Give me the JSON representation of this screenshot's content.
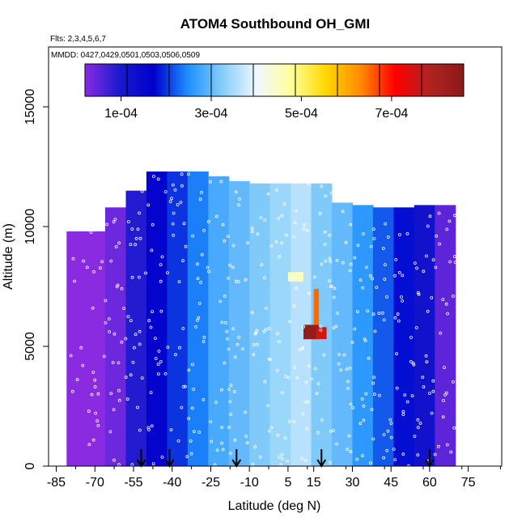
{
  "chart_data": {
    "type": "heatmap",
    "title": "ATOM4 Southbound OH_GMI",
    "flights_label": "Flts: 2,3,4,5,6,7",
    "mmdd_label": "MMDD: 0427,0429,0501,0503,0506,0509",
    "xlabel": "Latitude (deg N)",
    "ylabel": "Altitude (m)",
    "xlim": [
      -88,
      88
    ],
    "ylim": [
      0,
      17500
    ],
    "x_ticks": [
      -85,
      -70,
      -55,
      -40,
      -25,
      -10,
      5,
      15,
      30,
      45,
      60,
      75
    ],
    "x_tick_labels": [
      "-85",
      "-70",
      "-55",
      "-40",
      "-25",
      "-10",
      "5",
      "15",
      "30",
      "45",
      "60",
      "75"
    ],
    "y_ticks": [
      0,
      5000,
      10000,
      15000
    ],
    "y_tick_labels": [
      "0",
      "5000",
      "10000",
      "15000"
    ],
    "colorbar": {
      "min": 2e-05,
      "max": 0.00086,
      "ticks": [
        0.0001,
        0.0003,
        0.0005,
        0.0007
      ],
      "tick_labels": [
        "1e-04",
        "3e-04",
        "5e-04",
        "7e-04"
      ],
      "colors": [
        "#8a2be2",
        "#1a1acd",
        "#0000cd",
        "#1e90ff",
        "#87cefa",
        "#f0f8ff",
        "#ffff99",
        "#ffd700",
        "#ff8c00",
        "#ff0000",
        "#b22222",
        "#8b1a1a"
      ]
    },
    "latitude_bands": [
      {
        "lat_min": -81,
        "lat_max": -66,
        "alt_max": 9800,
        "value": 2e-05
      },
      {
        "lat_min": -66,
        "lat_max": -58,
        "alt_max": 10800,
        "value": 4e-05
      },
      {
        "lat_min": -58,
        "lat_max": -50,
        "alt_max": 11500,
        "value": 9e-05
      },
      {
        "lat_min": -50,
        "lat_max": -42,
        "alt_max": 12300,
        "value": 0.00016
      },
      {
        "lat_min": -42,
        "lat_max": -34,
        "alt_max": 12300,
        "value": 0.0002
      },
      {
        "lat_min": -34,
        "lat_max": -26,
        "alt_max": 12300,
        "value": 0.00024
      },
      {
        "lat_min": -26,
        "lat_max": -18,
        "alt_max": 12100,
        "value": 0.00028
      },
      {
        "lat_min": -18,
        "lat_max": -10,
        "alt_max": 11900,
        "value": 0.0003
      },
      {
        "lat_min": -10,
        "lat_max": -2,
        "alt_max": 11800,
        "value": 0.00032
      },
      {
        "lat_min": -2,
        "lat_max": 6,
        "alt_max": 11800,
        "value": 0.00034
      },
      {
        "lat_min": 6,
        "lat_max": 14,
        "alt_max": 11800,
        "value": 0.00036
      },
      {
        "lat_min": 14,
        "lat_max": 22,
        "alt_max": 11800,
        "value": 0.00032
      },
      {
        "lat_min": 22,
        "lat_max": 30,
        "alt_max": 11000,
        "value": 0.0003
      },
      {
        "lat_min": 30,
        "lat_max": 38,
        "alt_max": 10900,
        "value": 0.00026
      },
      {
        "lat_min": 38,
        "lat_max": 46,
        "alt_max": 10800,
        "value": 0.00022
      },
      {
        "lat_min": 46,
        "lat_max": 54,
        "alt_max": 10800,
        "value": 0.00018
      },
      {
        "lat_min": 54,
        "lat_max": 62,
        "alt_max": 10900,
        "value": 0.00012
      },
      {
        "lat_min": 62,
        "lat_max": 70,
        "alt_max": 10900,
        "value": 5e-05
      }
    ],
    "hotspots": [
      {
        "lat_min": 11,
        "lat_max": 17,
        "alt_min": 5300,
        "alt_max": 5900,
        "value": 0.00084
      },
      {
        "lat_min": 15,
        "lat_max": 17,
        "alt_min": 5900,
        "alt_max": 7400,
        "value": 0.00065
      },
      {
        "lat_min": 16,
        "lat_max": 20,
        "alt_min": 5300,
        "alt_max": 5800,
        "value": 0.00075
      },
      {
        "lat_min": 5,
        "lat_max": 11,
        "alt_min": 7700,
        "alt_max": 8100,
        "value": 0.00045
      }
    ],
    "arrows_latitude": [
      -52,
      -41,
      -15,
      18,
      60
    ]
  }
}
